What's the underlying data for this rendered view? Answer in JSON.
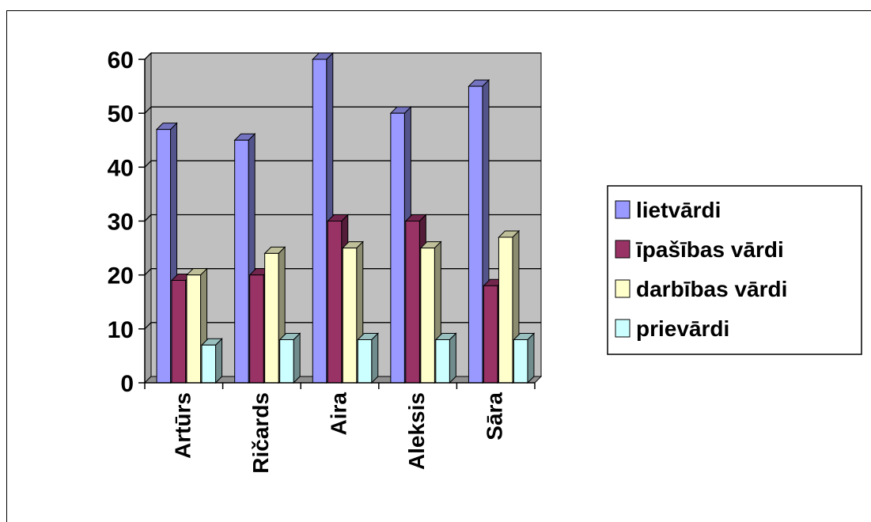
{
  "chart_data": {
    "type": "bar",
    "categories": [
      "Artūrs",
      "Ričards",
      "Aira",
      "Aleksis",
      "Sāra"
    ],
    "series": [
      {
        "name": "lietvārdi",
        "values": [
          47,
          45,
          60,
          50,
          55
        ],
        "color": "#9999ff"
      },
      {
        "name": "īpašības vārdi",
        "values": [
          19,
          20,
          30,
          30,
          18
        ],
        "color": "#993366"
      },
      {
        "name": "darbības vārdi",
        "values": [
          20,
          24,
          25,
          25,
          27
        ],
        "color": "#ffffcc"
      },
      {
        "name": "prievārdi",
        "values": [
          7,
          8,
          8,
          8,
          8
        ],
        "color": "#ccffff"
      }
    ],
    "ylim": [
      0,
      60
    ],
    "yticks": [
      "0",
      "10",
      "20",
      "30",
      "40",
      "50",
      "60"
    ],
    "grid": true,
    "legend_position": "right",
    "plot_background": "#c0c0c0"
  }
}
